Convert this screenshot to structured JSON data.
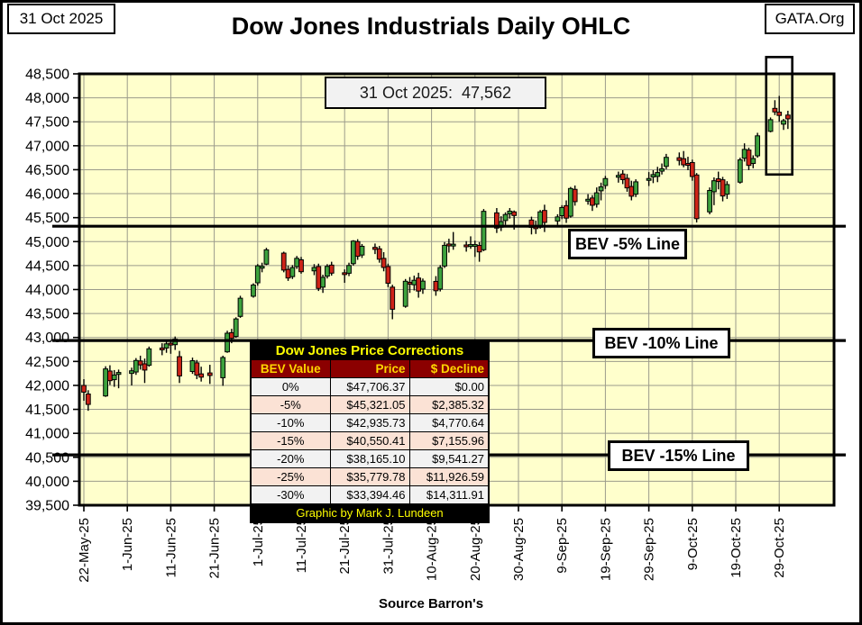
{
  "header": {
    "date_box": "31 Oct 2025",
    "site_box": "GATA.Org",
    "title": "Dow Jones Industrials Daily OHLC"
  },
  "corrections_table": {
    "title": "Dow Jones Price Corrections",
    "columns": [
      "BEV Value",
      "Price",
      "$ Decline"
    ],
    "rows": [
      [
        "0%",
        "$47,706.37",
        "$0.00"
      ],
      [
        "-5%",
        "$45,321.05",
        "$2,385.32"
      ],
      [
        "-10%",
        "$42,935.73",
        "$4,770.64"
      ],
      [
        "-15%",
        "$40,550.41",
        "$7,155.96"
      ],
      [
        "-20%",
        "$38,165.10",
        "$9,541.27"
      ],
      [
        "-25%",
        "$35,779.78",
        "$11,926.59"
      ],
      [
        "-30%",
        "$33,394.46",
        "$14,311.91"
      ]
    ],
    "footer": "Graphic by Mark J. Lundeen"
  },
  "chart_data": {
    "type": "candlestick-ohlc",
    "title": "Dow Jones Industrials Daily OHLC",
    "ylim": [
      39500,
      48500
    ],
    "ytick_step": 500,
    "grid": true,
    "legend": "none",
    "plot_bg": "#FFFFCC",
    "grid_color": "#9b9b8b",
    "up_color": "#3DA23D",
    "down_color": "#CE2418",
    "annotation": "31 Oct 2025:  47,562",
    "source_note": "Source Barron's",
    "bev_lines": [
      {
        "label": "BEV -5% Line",
        "value": 45321.05
      },
      {
        "label": "BEV -10% Line",
        "value": 42935.73
      },
      {
        "label": "BEV -15% Line",
        "value": 40550.41
      }
    ],
    "xticks": [
      {
        "date": "2025-05-22",
        "label": "22-May-25"
      },
      {
        "date": "2025-06-01",
        "label": "1-Jun-25"
      },
      {
        "date": "2025-06-11",
        "label": "11-Jun-25"
      },
      {
        "date": "2025-06-21",
        "label": "21-Jun-25"
      },
      {
        "date": "2025-07-01",
        "label": "1-Jul-25"
      },
      {
        "date": "2025-07-11",
        "label": "11-Jul-25"
      },
      {
        "date": "2025-07-21",
        "label": "21-Jul-25"
      },
      {
        "date": "2025-07-31",
        "label": "31-Jul-25"
      },
      {
        "date": "2025-08-10",
        "label": "10-Aug-25"
      },
      {
        "date": "2025-08-20",
        "label": "20-Aug-25"
      },
      {
        "date": "2025-08-30",
        "label": "30-Aug-25"
      },
      {
        "date": "2025-09-09",
        "label": "9-Sep-25"
      },
      {
        "date": "2025-09-19",
        "label": "19-Sep-25"
      },
      {
        "date": "2025-09-29",
        "label": "29-Sep-25"
      },
      {
        "date": "2025-10-09",
        "label": "9-Oct-25"
      },
      {
        "date": "2025-10-19",
        "label": "19-Oct-25"
      },
      {
        "date": "2025-10-29",
        "label": "29-Oct-25"
      }
    ],
    "highlight_box": {
      "x_from": "2025-10-26",
      "x_to": "2025-11-01",
      "y_top": 48850,
      "y_bottom": 46400
    },
    "ohlc": [
      [
        "2025-05-22",
        42000,
        42130,
        41680,
        41859
      ],
      [
        "2025-05-23",
        41820,
        41900,
        41470,
        41603
      ],
      [
        "2025-05-27",
        41780,
        42400,
        41760,
        42344
      ],
      [
        "2025-05-28",
        42300,
        42420,
        42010,
        42099
      ],
      [
        "2025-05-29",
        42120,
        42320,
        41970,
        42216
      ],
      [
        "2025-05-30",
        42230,
        42330,
        41940,
        42270
      ],
      [
        "2025-06-02",
        42250,
        42370,
        42000,
        42305
      ],
      [
        "2025-06-03",
        42280,
        42570,
        42220,
        42520
      ],
      [
        "2025-06-04",
        42510,
        42620,
        42330,
        42428
      ],
      [
        "2025-06-05",
        42450,
        42560,
        42050,
        42320
      ],
      [
        "2025-06-06",
        42420,
        42810,
        42390,
        42763
      ],
      [
        "2025-06-09",
        42780,
        42880,
        42630,
        42762
      ],
      [
        "2025-06-10",
        42780,
        42950,
        42680,
        42867
      ],
      [
        "2025-06-11",
        42880,
        42940,
        42660,
        42866
      ],
      [
        "2025-06-12",
        42850,
        43020,
        42740,
        42968
      ],
      [
        "2025-06-13",
        42600,
        42720,
        42050,
        42198
      ],
      [
        "2025-06-16",
        42290,
        42580,
        42240,
        42515
      ],
      [
        "2025-06-17",
        42470,
        42530,
        42130,
        42216
      ],
      [
        "2025-06-18",
        42240,
        42390,
        42080,
        42172
      ],
      [
        "2025-06-20",
        42260,
        42430,
        42030,
        42207
      ],
      [
        "2025-06-23",
        42160,
        42620,
        41990,
        42582
      ],
      [
        "2025-06-24",
        42700,
        43140,
        42680,
        43089
      ],
      [
        "2025-06-25",
        43100,
        43180,
        42880,
        42982
      ],
      [
        "2025-06-26",
        43020,
        43420,
        42990,
        43387
      ],
      [
        "2025-06-27",
        43440,
        43870,
        43410,
        43819
      ],
      [
        "2025-06-30",
        43860,
        44130,
        43830,
        44095
      ],
      [
        "2025-07-01",
        44140,
        44530,
        44080,
        44495
      ],
      [
        "2025-07-02",
        44480,
        44560,
        44360,
        44484
      ],
      [
        "2025-07-03",
        44530,
        44870,
        44510,
        44829
      ],
      [
        "2025-07-07",
        44760,
        44790,
        44360,
        44406
      ],
      [
        "2025-07-08",
        44420,
        44500,
        44180,
        44241
      ],
      [
        "2025-07-09",
        44270,
        44510,
        44220,
        44458
      ],
      [
        "2025-07-10",
        44480,
        44700,
        44430,
        44651
      ],
      [
        "2025-07-11",
        44620,
        44680,
        44330,
        44372
      ],
      [
        "2025-07-14",
        44390,
        44530,
        44300,
        44460
      ],
      [
        "2025-07-15",
        44480,
        44540,
        43970,
        44023
      ],
      [
        "2025-07-16",
        44050,
        44310,
        43930,
        44255
      ],
      [
        "2025-07-17",
        44280,
        44530,
        44230,
        44484
      ],
      [
        "2025-07-18",
        44510,
        44580,
        44290,
        44342
      ],
      [
        "2025-07-21",
        44350,
        44420,
        44140,
        44323
      ],
      [
        "2025-07-22",
        44340,
        44560,
        44280,
        44502
      ],
      [
        "2025-07-23",
        44540,
        45030,
        44500,
        45010
      ],
      [
        "2025-07-24",
        45000,
        45050,
        44620,
        44694
      ],
      [
        "2025-07-25",
        44720,
        44950,
        44660,
        44902
      ],
      [
        "2025-07-28",
        44880,
        44960,
        44740,
        44838
      ],
      [
        "2025-07-29",
        44850,
        44910,
        44560,
        44633
      ],
      [
        "2025-07-30",
        44650,
        44780,
        44380,
        44461
      ],
      [
        "2025-07-31",
        44480,
        44540,
        44050,
        44131
      ],
      [
        "2025-08-01",
        44050,
        44100,
        43380,
        43589
      ],
      [
        "2025-08-04",
        43650,
        44220,
        43620,
        44173
      ],
      [
        "2025-08-05",
        44150,
        44260,
        43930,
        44112
      ],
      [
        "2025-08-06",
        44100,
        44290,
        43980,
        44193
      ],
      [
        "2025-08-07",
        44240,
        44350,
        43830,
        43968
      ],
      [
        "2025-08-08",
        44010,
        44230,
        43910,
        44176
      ],
      [
        "2025-08-11",
        44170,
        44280,
        43870,
        43975
      ],
      [
        "2025-08-12",
        44010,
        44510,
        43960,
        44458
      ],
      [
        "2025-08-13",
        44490,
        44990,
        44450,
        44922
      ],
      [
        "2025-08-14",
        44950,
        45060,
        44770,
        44911
      ],
      [
        "2025-08-15",
        44940,
        45200,
        44830,
        44946
      ],
      [
        "2025-08-18",
        44930,
        45010,
        44790,
        44912
      ],
      [
        "2025-08-19",
        44930,
        45110,
        44850,
        44938
      ],
      [
        "2025-08-20",
        44910,
        45020,
        44680,
        44938
      ],
      [
        "2025-08-21",
        44920,
        44990,
        44580,
        44785
      ],
      [
        "2025-08-22",
        44830,
        45680,
        44800,
        45632
      ],
      [
        "2025-08-25",
        45600,
        45700,
        45180,
        45282
      ],
      [
        "2025-08-26",
        45300,
        45530,
        45220,
        45418
      ],
      [
        "2025-08-27",
        45440,
        45610,
        45350,
        45565
      ],
      [
        "2025-08-28",
        45580,
        45700,
        45480,
        45636
      ],
      [
        "2025-08-29",
        45620,
        45650,
        45250,
        45544
      ],
      [
        "2025-09-02",
        45450,
        45520,
        45150,
        45296
      ],
      [
        "2025-09-03",
        45310,
        45440,
        45160,
        45271
      ],
      [
        "2025-09-04",
        45300,
        45660,
        45270,
        45621
      ],
      [
        "2025-09-05",
        45650,
        45770,
        45200,
        45400
      ],
      [
        "2025-09-08",
        45430,
        45570,
        45350,
        45515
      ],
      [
        "2025-09-09",
        45540,
        45760,
        45470,
        45711
      ],
      [
        "2025-09-10",
        45750,
        45860,
        45390,
        45490
      ],
      [
        "2025-09-11",
        45530,
        46140,
        45500,
        46108
      ],
      [
        "2025-09-12",
        46090,
        46170,
        45750,
        45834
      ],
      [
        "2025-09-15",
        45860,
        45990,
        45770,
        45883
      ],
      [
        "2025-09-16",
        45910,
        45970,
        45640,
        45758
      ],
      [
        "2025-09-17",
        45780,
        46130,
        45710,
        46018
      ],
      [
        "2025-09-18",
        46060,
        46230,
        45860,
        46142
      ],
      [
        "2025-09-19",
        46170,
        46370,
        46100,
        46315
      ],
      [
        "2025-09-22",
        46350,
        46460,
        46230,
        46381
      ],
      [
        "2025-09-23",
        46410,
        46490,
        46200,
        46293
      ],
      [
        "2025-09-24",
        46320,
        46410,
        46040,
        46121
      ],
      [
        "2025-09-25",
        46150,
        46270,
        45860,
        45947
      ],
      [
        "2025-09-26",
        45990,
        46300,
        45930,
        46247
      ],
      [
        "2025-09-29",
        46290,
        46450,
        46160,
        46316
      ],
      [
        "2025-09-30",
        46350,
        46490,
        46220,
        46398
      ],
      [
        "2025-10-01",
        46360,
        46560,
        46240,
        46441
      ],
      [
        "2025-10-02",
        46470,
        46630,
        46400,
        46520
      ],
      [
        "2025-10-03",
        46570,
        46830,
        46510,
        46758
      ],
      [
        "2025-10-06",
        46750,
        46860,
        46590,
        46694
      ],
      [
        "2025-10-07",
        46730,
        46890,
        46550,
        46602
      ],
      [
        "2025-10-08",
        46630,
        46770,
        46490,
        46601
      ],
      [
        "2025-10-09",
        46650,
        46710,
        46270,
        46358
      ],
      [
        "2025-10-10",
        46390,
        46430,
        45400,
        45479
      ],
      [
        "2025-10-13",
        45620,
        46130,
        45570,
        46067
      ],
      [
        "2025-10-14",
        46040,
        46340,
        45760,
        46270
      ],
      [
        "2025-10-15",
        46310,
        46460,
        46090,
        46253
      ],
      [
        "2025-10-16",
        46290,
        46350,
        45840,
        45952
      ],
      [
        "2025-10-17",
        45990,
        46260,
        45890,
        46190
      ],
      [
        "2025-10-20",
        46240,
        46750,
        46210,
        46706
      ],
      [
        "2025-10-21",
        46740,
        47050,
        46670,
        46924
      ],
      [
        "2025-10-22",
        46910,
        46960,
        46490,
        46590
      ],
      [
        "2025-10-23",
        46630,
        46800,
        46530,
        46734
      ],
      [
        "2025-10-24",
        46790,
        47270,
        46750,
        47207
      ],
      [
        "2025-10-27",
        47300,
        47590,
        47280,
        47544
      ],
      [
        "2025-10-28",
        47780,
        47950,
        47640,
        47706
      ],
      [
        "2025-10-29",
        47700,
        48040,
        47500,
        47632
      ],
      [
        "2025-10-30",
        47450,
        47560,
        47330,
        47522
      ],
      [
        "2025-10-31",
        47640,
        47730,
        47350,
        47562
      ]
    ]
  }
}
